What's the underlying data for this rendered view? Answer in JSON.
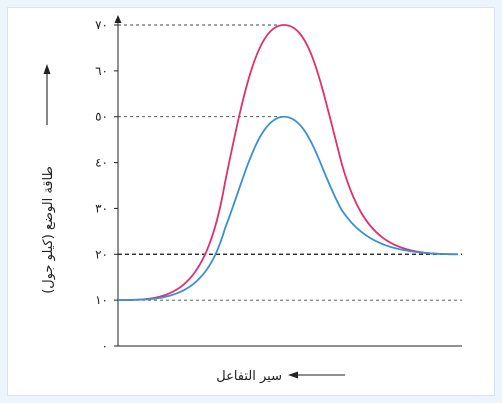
{
  "chart_data": {
    "type": "line",
    "xlabel": "سير التفاعل",
    "ylabel": "طاقة الوضع (كيلو جول)",
    "ylim": [
      0,
      70
    ],
    "yticks": [
      {
        "value": 0,
        "label": "٠"
      },
      {
        "value": 10,
        "label": "١٠"
      },
      {
        "value": 20,
        "label": "٢٠"
      },
      {
        "value": 30,
        "label": "٣٠"
      },
      {
        "value": 40,
        "label": "٤٠"
      },
      {
        "value": 50,
        "label": "٥٠"
      },
      {
        "value": 60,
        "label": "٦٠"
      },
      {
        "value": 70,
        "label": "٧٠"
      }
    ],
    "reference_lines": [
      {
        "value": 70,
        "style": "dashed",
        "color": "#444444"
      },
      {
        "value": 50,
        "style": "dashed",
        "color": "#444444"
      },
      {
        "value": 20,
        "style": "dashed",
        "color": "#111111"
      },
      {
        "value": 10,
        "style": "dashed",
        "color": "#444444"
      }
    ],
    "series": [
      {
        "color": "#e0306e",
        "start": 10,
        "peak": 70,
        "end": 20
      },
      {
        "color": "#3a8fd6",
        "start": 10,
        "peak": 50,
        "end": 20
      }
    ],
    "grid": false,
    "legend": "none"
  }
}
